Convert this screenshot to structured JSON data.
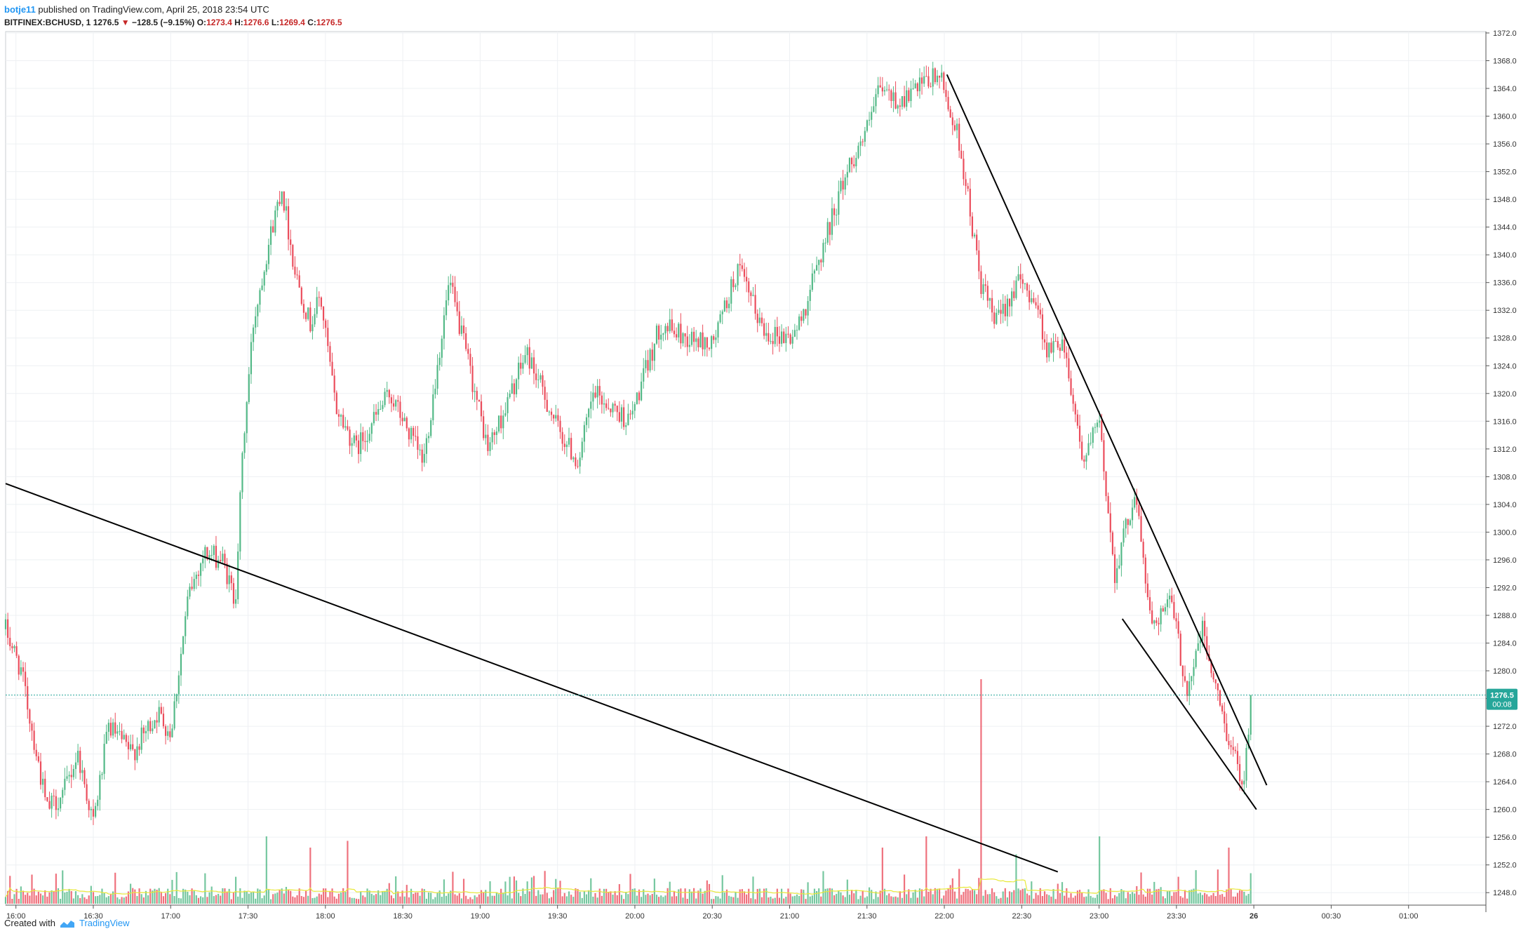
{
  "header": {
    "username": "botje11",
    "published_text": "published on TradingView.com, April 25, 2018 23:54 UTC",
    "symbol": "BITFINEX:BCHUSD, 1",
    "last": "1276.5",
    "change": "−128.5 (−9.15%)",
    "open_label": "O:",
    "open": "1273.4",
    "high_label": "H:",
    "high": "1276.6",
    "low_label": "L:",
    "low": "1269.4",
    "close_label": "C:",
    "close": "1276.5"
  },
  "footer": {
    "created_with": "Created with",
    "brand": "TradingView"
  },
  "colors": {
    "up": "#53b987",
    "down": "#eb4d5c",
    "trendline": "#000000",
    "volume_ma": "#e8e83a",
    "price_line": "#26a69a",
    "price_label_bg": "#26a69a"
  },
  "chart_data": {
    "type": "candlestick",
    "symbol": "BITFINEX:BCHUSD",
    "interval": "1",
    "y_axis": {
      "ticks": [
        1248.0,
        1252.0,
        1256.0,
        1260.0,
        1264.0,
        1268.0,
        1272.0,
        1276.0,
        1280.0,
        1284.0,
        1288.0,
        1292.0,
        1296.0,
        1300.0,
        1304.0,
        1308.0,
        1312.0,
        1316.0,
        1320.0,
        1324.0,
        1328.0,
        1332.0,
        1336.0,
        1340.0,
        1344.0,
        1348.0,
        1352.0,
        1356.0,
        1360.0,
        1364.0,
        1368.0,
        1372.0
      ],
      "range": [
        1246.2,
        1372.2
      ],
      "position": "right"
    },
    "x_axis": {
      "ticks": [
        {
          "t": "16:00",
          "min": 0
        },
        {
          "t": "16:30",
          "min": 30
        },
        {
          "t": "17:00",
          "min": 60
        },
        {
          "t": "17:30",
          "min": 90
        },
        {
          "t": "18:00",
          "min": 120
        },
        {
          "t": "18:30",
          "min": 150
        },
        {
          "t": "19:00",
          "min": 180
        },
        {
          "t": "19:30",
          "min": 210
        },
        {
          "t": "20:00",
          "min": 240
        },
        {
          "t": "20:30",
          "min": 270
        },
        {
          "t": "21:00",
          "min": 300
        },
        {
          "t": "21:30",
          "min": 330
        },
        {
          "t": "22:00",
          "min": 360
        },
        {
          "t": "22:30",
          "min": 390
        },
        {
          "t": "23:00",
          "min": 420
        },
        {
          "t": "23:30",
          "min": 450
        },
        {
          "t": "26",
          "min": 480
        },
        {
          "t": "00:30",
          "min": 510
        },
        {
          "t": "01:00",
          "min": 540
        }
      ],
      "range_minutes": [
        -4,
        570
      ]
    },
    "last_price": 1276.5,
    "countdown": "00:08",
    "anchors": [
      [
        -4,
        1286
      ],
      [
        2,
        1280
      ],
      [
        8,
        1268
      ],
      [
        12,
        1260
      ],
      [
        18,
        1262
      ],
      [
        24,
        1268
      ],
      [
        30,
        1258
      ],
      [
        36,
        1272
      ],
      [
        45,
        1268
      ],
      [
        55,
        1274
      ],
      [
        60,
        1271
      ],
      [
        67,
        1291
      ],
      [
        73,
        1297
      ],
      [
        80,
        1296
      ],
      [
        85,
        1290
      ],
      [
        88,
        1312
      ],
      [
        92,
        1330
      ],
      [
        97,
        1340
      ],
      [
        103,
        1350
      ],
      [
        108,
        1338
      ],
      [
        114,
        1330
      ],
      [
        118,
        1334
      ],
      [
        124,
        1318
      ],
      [
        132,
        1312
      ],
      [
        145,
        1320
      ],
      [
        158,
        1310
      ],
      [
        168,
        1336
      ],
      [
        175,
        1325
      ],
      [
        183,
        1312
      ],
      [
        190,
        1318
      ],
      [
        198,
        1326
      ],
      [
        210,
        1315
      ],
      [
        218,
        1310
      ],
      [
        224,
        1320
      ],
      [
        238,
        1316
      ],
      [
        250,
        1330
      ],
      [
        260,
        1328
      ],
      [
        270,
        1327
      ],
      [
        280,
        1338
      ],
      [
        290,
        1329
      ],
      [
        300,
        1328
      ],
      [
        304,
        1330
      ],
      [
        312,
        1340
      ],
      [
        322,
        1352
      ],
      [
        330,
        1358
      ],
      [
        335,
        1364
      ],
      [
        342,
        1362
      ],
      [
        350,
        1364
      ],
      [
        358,
        1366
      ],
      [
        366,
        1356
      ],
      [
        374,
        1336
      ],
      [
        380,
        1330
      ],
      [
        388,
        1336
      ],
      [
        395,
        1334
      ],
      [
        400,
        1326
      ],
      [
        406,
        1328
      ],
      [
        414,
        1310
      ],
      [
        420,
        1316
      ],
      [
        426,
        1294
      ],
      [
        434,
        1306
      ],
      [
        440,
        1287
      ],
      [
        448,
        1290
      ],
      [
        454,
        1277
      ],
      [
        460,
        1286
      ],
      [
        466,
        1276
      ],
      [
        472,
        1268
      ],
      [
        476,
        1264
      ],
      [
        479,
        1276.5
      ]
    ],
    "volume_spikes": [
      [
        374,
        1.0
      ],
      [
        353,
        0.3
      ],
      [
        420,
        0.3
      ],
      [
        388,
        0.22
      ],
      [
        336,
        0.25
      ],
      [
        114,
        0.25
      ],
      [
        97,
        0.3
      ],
      [
        129,
        0.28
      ],
      [
        470,
        0.25
      ]
    ],
    "trendlines": [
      {
        "name": "support-line",
        "from": [
          -4,
          1307
        ],
        "to": [
          404,
          1251
        ]
      },
      {
        "name": "channel-upper",
        "from": [
          361,
          1366
        ],
        "to": [
          485,
          1263.5
        ]
      },
      {
        "name": "channel-lower",
        "from": [
          429,
          1287.5
        ],
        "to": [
          481,
          1260
        ]
      }
    ]
  }
}
